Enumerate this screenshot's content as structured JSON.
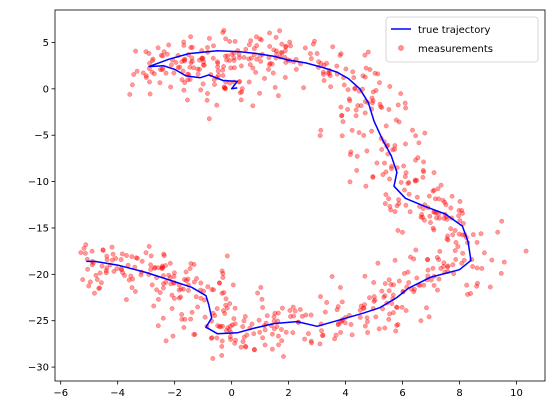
{
  "chart_data": {
    "type": "scatter",
    "title": "",
    "xlabel": "",
    "ylabel": "",
    "xlim": [
      -6.2,
      11.0
    ],
    "ylim": [
      -31.5,
      8.5
    ],
    "xticks": [
      -6,
      -4,
      -2,
      0,
      2,
      4,
      6,
      8,
      10
    ],
    "yticks": [
      5,
      0,
      -5,
      -10,
      -15,
      -20,
      -25,
      -30
    ],
    "legend_position": "top-right",
    "grid": false,
    "series": [
      {
        "name": "true trajectory",
        "kind": "line",
        "color": "#0000ff",
        "points": [
          [
            0.2,
            0.1
          ],
          [
            0.0,
            0.0
          ],
          [
            0.2,
            0.8
          ],
          [
            -0.3,
            0.9
          ],
          [
            -0.8,
            1.5
          ],
          [
            -1.1,
            1.2
          ],
          [
            -1.6,
            1.4
          ],
          [
            -2.0,
            2.1
          ],
          [
            -2.4,
            2.5
          ],
          [
            -2.9,
            2.4
          ],
          [
            -2.2,
            3.2
          ],
          [
            -1.5,
            3.8
          ],
          [
            -0.5,
            4.1
          ],
          [
            0.3,
            4.0
          ],
          [
            0.9,
            3.8
          ],
          [
            1.5,
            3.5
          ],
          [
            2.0,
            3.1
          ],
          [
            2.6,
            2.8
          ],
          [
            3.2,
            2.3
          ],
          [
            3.7,
            1.8
          ],
          [
            4.1,
            1.1
          ],
          [
            4.5,
            0.0
          ],
          [
            4.8,
            -1.5
          ],
          [
            5.0,
            -3.5
          ],
          [
            5.3,
            -5.5
          ],
          [
            5.6,
            -7.2
          ],
          [
            5.8,
            -9.0
          ],
          [
            5.7,
            -10.5
          ],
          [
            6.1,
            -11.8
          ],
          [
            6.8,
            -12.7
          ],
          [
            7.5,
            -13.5
          ],
          [
            8.1,
            -14.8
          ],
          [
            8.3,
            -16.5
          ],
          [
            8.4,
            -18.5
          ],
          [
            8.0,
            -19.5
          ],
          [
            7.0,
            -20.3
          ],
          [
            6.2,
            -21.5
          ],
          [
            5.8,
            -22.5
          ],
          [
            5.2,
            -23.6
          ],
          [
            4.6,
            -24.2
          ],
          [
            3.7,
            -25.0
          ],
          [
            3.0,
            -25.6
          ],
          [
            2.3,
            -25.1
          ],
          [
            1.5,
            -25.3
          ],
          [
            0.8,
            -25.8
          ],
          [
            0.2,
            -26.3
          ],
          [
            -0.5,
            -26.4
          ],
          [
            -0.9,
            -25.7
          ],
          [
            -0.7,
            -24.7
          ],
          [
            -0.8,
            -23.3
          ],
          [
            -0.9,
            -22.3
          ],
          [
            -1.4,
            -21.4
          ],
          [
            -2.2,
            -20.6
          ],
          [
            -3.0,
            -19.8
          ],
          [
            -4.0,
            -19.0
          ],
          [
            -4.8,
            -18.6
          ],
          [
            -5.1,
            -18.6
          ]
        ]
      },
      {
        "name": "measurements",
        "kind": "scatter",
        "color": "#ff0000",
        "opacity": 0.4,
        "approx_count": 760
      }
    ]
  },
  "legend": {
    "line_label": "true trajectory",
    "marker_label": "measurements"
  }
}
